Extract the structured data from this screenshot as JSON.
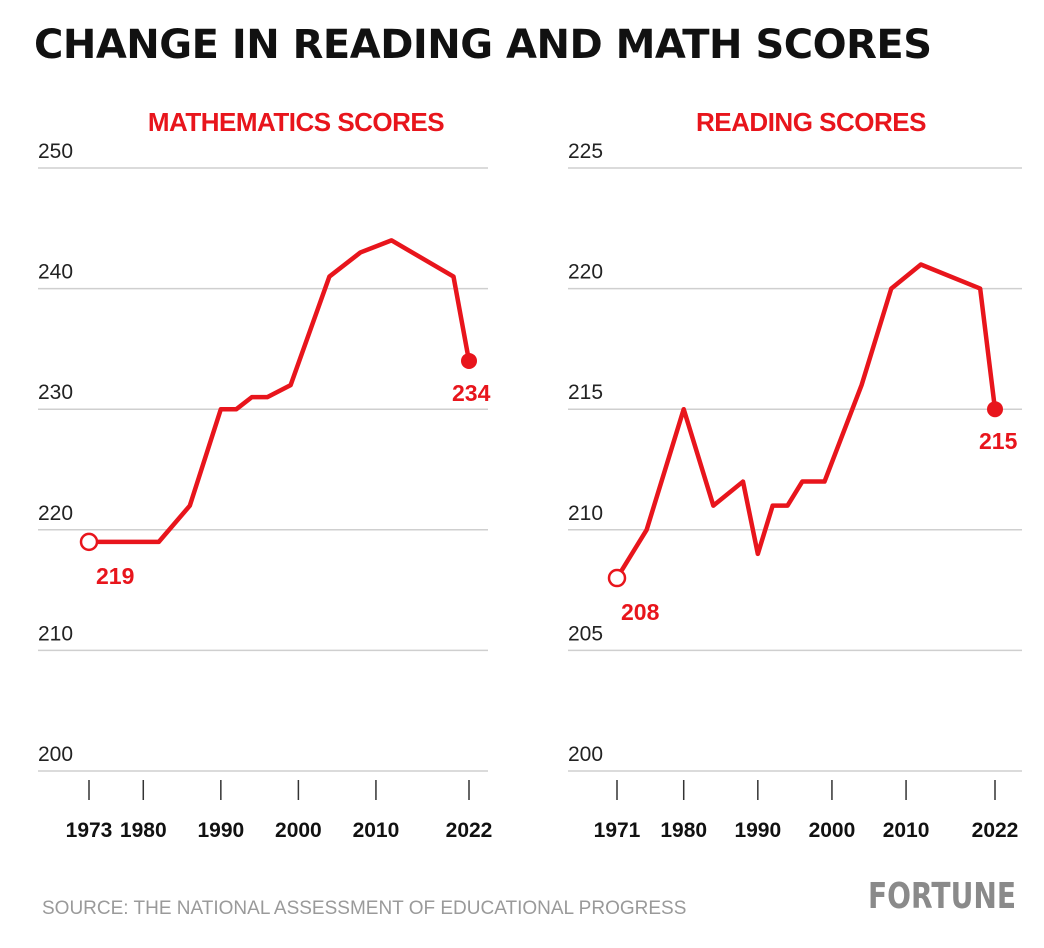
{
  "title": "CHANGE IN READING AND MATH SCORES",
  "source": "SOURCE: THE NATIONAL ASSESSMENT OF EDUCATIONAL PROGRESS",
  "brand": "FORTUNE",
  "colors": {
    "series": "#e8151c",
    "grid": "#cfcfcf",
    "text": "#111111",
    "muted": "#9a9a9a"
  },
  "chart_data": [
    {
      "type": "line",
      "title": "MATHEMATICS SCORES",
      "ylim": [
        200,
        250
      ],
      "yticks": [
        "250",
        "240",
        "230",
        "220",
        "210",
        "200"
      ],
      "xlim": [
        1973,
        2022
      ],
      "xticks": [
        {
          "label": "1973",
          "x": 1973
        },
        {
          "label": "1980",
          "x": 1980
        },
        {
          "label": "1990",
          "x": 1990
        },
        {
          "label": "2000",
          "x": 2000
        },
        {
          "label": "2010",
          "x": 2010
        },
        {
          "label": "2022",
          "x": 2022
        }
      ],
      "x": [
        1973,
        1978,
        1982,
        1986,
        1990,
        1992,
        1994,
        1996,
        1999,
        2004,
        2008,
        2012,
        2020,
        2022
      ],
      "values": [
        219,
        219,
        219,
        222,
        230,
        230,
        231,
        231,
        232,
        241,
        243,
        244,
        241,
        234
      ],
      "start_label": "219",
      "end_label": "234"
    },
    {
      "type": "line",
      "title": "READING SCORES",
      "ylim": [
        200,
        225
      ],
      "yticks": [
        "225",
        "220",
        "215",
        "210",
        "205",
        "200"
      ],
      "xlim": [
        1971,
        2022
      ],
      "xticks": [
        {
          "label": "1971",
          "x": 1971
        },
        {
          "label": "1980",
          "x": 1980
        },
        {
          "label": "1990",
          "x": 1990
        },
        {
          "label": "2000",
          "x": 2000
        },
        {
          "label": "2010",
          "x": 2010
        },
        {
          "label": "2022",
          "x": 2022
        }
      ],
      "x": [
        1971,
        1975,
        1980,
        1984,
        1988,
        1990,
        1992,
        1994,
        1996,
        1999,
        2004,
        2008,
        2012,
        2020,
        2022
      ],
      "values": [
        208,
        210,
        215,
        211,
        212,
        209,
        211,
        211,
        212,
        212,
        216,
        220,
        221,
        220,
        215
      ],
      "start_label": "208",
      "end_label": "215"
    }
  ]
}
